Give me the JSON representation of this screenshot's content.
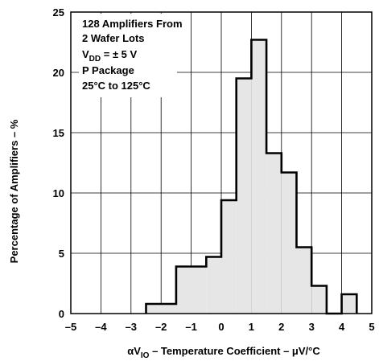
{
  "chart_data": {
    "type": "histogram",
    "title": "",
    "xlabel_prefix": "αV",
    "xlabel_sub": "IO",
    "xlabel_suffix": " – Temperature Coefficient – μV/°C",
    "ylabel": "Percentage of Amplifiers – %",
    "xlim": [
      -5,
      5
    ],
    "ylim": [
      0,
      25
    ],
    "x_ticks": [
      "–5",
      "–4",
      "–3",
      "–2",
      "–1",
      "0",
      "1",
      "2",
      "3",
      "4",
      "5"
    ],
    "y_ticks": [
      "0",
      "5",
      "10",
      "15",
      "20",
      "25"
    ],
    "x_tick_values": [
      -5,
      -4,
      -3,
      -2,
      -1,
      0,
      1,
      2,
      3,
      4,
      5
    ],
    "y_tick_values": [
      0,
      5,
      10,
      15,
      20,
      25
    ],
    "grid": true,
    "bins": [
      {
        "x0": -2.5,
        "x1": -1.5,
        "value": 0.8
      },
      {
        "x0": -1.5,
        "x1": -0.5,
        "value": 3.9
      },
      {
        "x0": -0.5,
        "x1": 0.0,
        "value": 4.7
      },
      {
        "x0": 0.0,
        "x1": 0.5,
        "value": 9.4
      },
      {
        "x0": 0.5,
        "x1": 1.0,
        "value": 19.5
      },
      {
        "x0": 1.0,
        "x1": 1.5,
        "value": 22.7
      },
      {
        "x0": 1.5,
        "x1": 2.0,
        "value": 13.3
      },
      {
        "x0": 2.0,
        "x1": 2.5,
        "value": 11.7
      },
      {
        "x0": 2.5,
        "x1": 3.0,
        "value": 5.5
      },
      {
        "x0": 3.0,
        "x1": 3.5,
        "value": 2.3
      },
      {
        "x0": 3.5,
        "x1": 4.0,
        "value": 0.0
      },
      {
        "x0": 4.0,
        "x1": 4.5,
        "value": 1.6
      }
    ],
    "annotation_lines": [
      {
        "text": "128 Amplifiers From"
      },
      {
        "text": "2 Wafer Lots"
      },
      {
        "prefix": "V",
        "sub": "DD",
        "suffix": " = ± 5 V"
      },
      {
        "text": "P Package"
      },
      {
        "text": "25°C to 125°C"
      }
    ],
    "colors": {
      "fill": "#e6e6e6",
      "line": "#000000",
      "grid": "#000000"
    }
  }
}
